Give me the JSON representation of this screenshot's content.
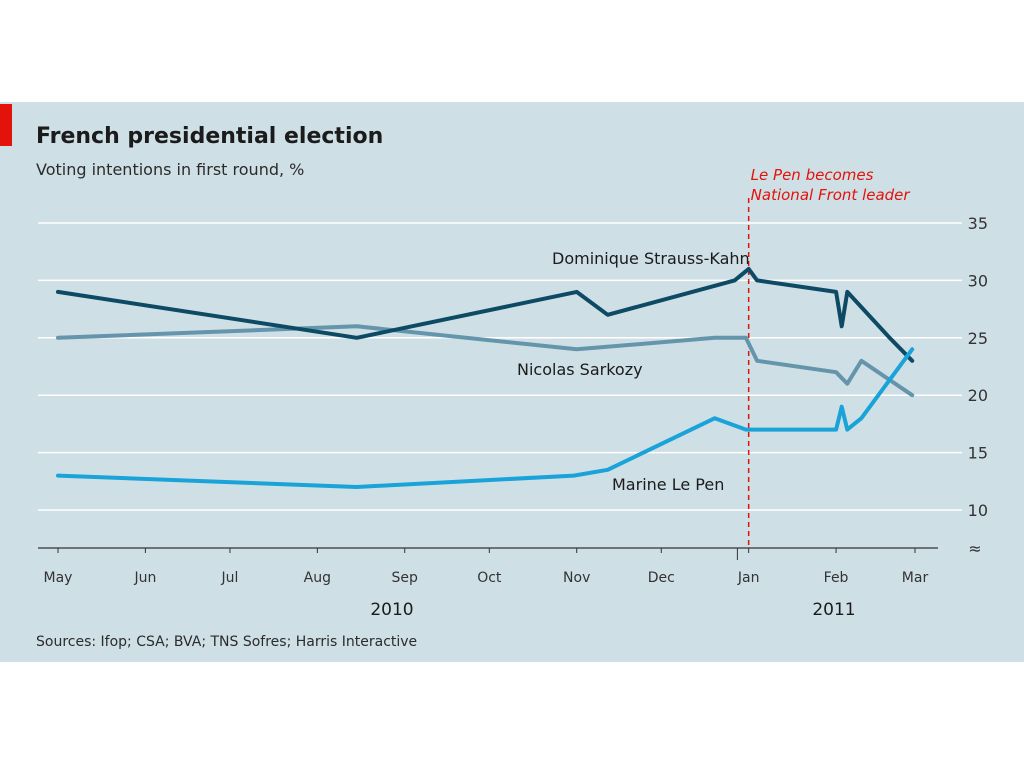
{
  "colors": {
    "background": "#cfdfe6",
    "accent": "#e3120b",
    "dsk": "#0d4a63",
    "sarkozy": "#6495ab",
    "lepen": "#1aa3d8"
  },
  "chart_data": {
    "type": "line",
    "title": "French presidential election",
    "subtitle": "Voting intentions in first round, %",
    "source": "Sources: Ifop; CSA; BVA; TNS Sofres; Harris Interactive",
    "x_tick_labels": [
      "May",
      "Jun",
      "Jul",
      "Aug",
      "Sep",
      "Oct",
      "Nov",
      "Dec",
      "Jan",
      "Feb",
      "Mar"
    ],
    "x_group_labels": [
      "2010",
      "2011"
    ],
    "y_ticks": [
      10,
      15,
      20,
      25,
      30,
      35
    ],
    "ylim": [
      10,
      35
    ],
    "axis_break": true,
    "grid": true,
    "event": {
      "x": "2011-01-01",
      "label_lines": [
        "Le Pen becomes",
        "National Front leader"
      ]
    },
    "series": [
      {
        "name": "Dominique Strauss-Kahn",
        "color": "#0d4a63",
        "x": [
          "2010-05-01",
          "2010-08-15",
          "2010-11-01",
          "2010-11-12",
          "2010-12-27",
          "2011-01-01",
          "2011-01-04",
          "2011-02-01",
          "2011-02-03",
          "2011-02-05",
          "2011-02-20",
          "2011-02-28"
        ],
        "y": [
          29,
          25,
          29,
          27,
          30,
          31,
          30,
          29,
          26,
          29,
          25,
          23
        ]
      },
      {
        "name": "Nicolas Sarkozy",
        "color": "#6495ab",
        "x": [
          "2010-05-01",
          "2010-08-15",
          "2010-11-01",
          "2010-12-20",
          "2010-12-31",
          "2011-01-04",
          "2011-02-01",
          "2011-02-05",
          "2011-02-10",
          "2011-02-28"
        ],
        "y": [
          25,
          26,
          24,
          25,
          25,
          23,
          22,
          21,
          23,
          20
        ]
      },
      {
        "name": "Marine Le Pen",
        "color": "#1aa3d8",
        "x": [
          "2010-05-01",
          "2010-08-15",
          "2010-10-31",
          "2010-11-12",
          "2010-12-20",
          "2010-12-31",
          "2011-02-01",
          "2011-02-03",
          "2011-02-05",
          "2011-02-10",
          "2011-02-28"
        ],
        "y": [
          13,
          12,
          13,
          13.5,
          18,
          17,
          17,
          19,
          17,
          18,
          24
        ]
      }
    ]
  }
}
